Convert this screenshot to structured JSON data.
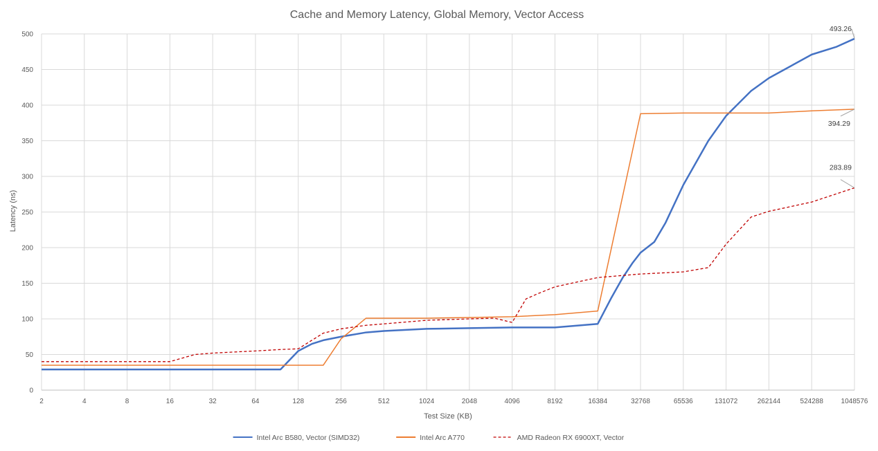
{
  "chart_data": {
    "type": "line",
    "title": "Cache and Memory Latency, Global Memory, Vector Access",
    "xlabel": "Test Size (KB)",
    "ylabel": "Latency (ns)",
    "x_scale": "log2",
    "xlim": [
      2,
      1048576
    ],
    "ylim": [
      0,
      500
    ],
    "x_ticks": [
      2,
      4,
      8,
      16,
      32,
      64,
      128,
      256,
      512,
      1024,
      2048,
      4096,
      8192,
      16384,
      32768,
      65536,
      131072,
      262144,
      524288,
      1048576
    ],
    "y_ticks": [
      0,
      50,
      100,
      150,
      200,
      250,
      300,
      350,
      400,
      450,
      500
    ],
    "grid": "both",
    "legend_position": "bottom",
    "series": [
      {
        "name": "Intel Arc B580, Vector (SIMD32)",
        "color": "#4472c4",
        "style": "solid",
        "x": [
          2,
          4,
          8,
          16,
          32,
          64,
          96,
          128,
          160,
          192,
          256,
          384,
          512,
          1024,
          2048,
          4096,
          8192,
          16384,
          20480,
          24576,
          28672,
          32768,
          40960,
          49152,
          65536,
          98304,
          131072,
          196608,
          262144,
          524288,
          786432,
          1048576
        ],
        "values": [
          29,
          29,
          29,
          29,
          29,
          29,
          29,
          55,
          65,
          70,
          75,
          81,
          83,
          86,
          87,
          88,
          88,
          93,
          130,
          158,
          178,
          193,
          208,
          235,
          288,
          350,
          385,
          420,
          438,
          471,
          482,
          493.26
        ]
      },
      {
        "name": "Intel Arc A770",
        "color": "#ed7d31",
        "style": "solid",
        "x": [
          2,
          4,
          8,
          16,
          32,
          64,
          128,
          192,
          256,
          384,
          512,
          1024,
          2048,
          4096,
          8192,
          16384,
          32768,
          65536,
          131072,
          262144,
          524288,
          1048576
        ],
        "values": [
          35,
          35,
          35,
          35,
          35,
          35,
          35,
          35,
          72,
          101,
          101,
          101,
          102,
          103,
          106,
          111,
          388,
          389,
          389,
          389,
          392,
          394.29
        ]
      },
      {
        "name": "AMD Radeon RX 6900XT, Vector",
        "color": "#c00000",
        "style": "dashed",
        "x": [
          2,
          4,
          8,
          16,
          24,
          32,
          64,
          96,
          128,
          192,
          256,
          384,
          512,
          1024,
          2048,
          3072,
          4096,
          5120,
          6144,
          8192,
          16384,
          32768,
          65536,
          98304,
          131072,
          196608,
          262144,
          524288,
          1048576
        ],
        "values": [
          40,
          40,
          40,
          40,
          50,
          52,
          55,
          57,
          58,
          80,
          86,
          91,
          93,
          98,
          100,
          101,
          95,
          128,
          135,
          145,
          158,
          163,
          166,
          172,
          205,
          243,
          251,
          264,
          283.89
        ]
      }
    ],
    "annotations": [
      {
        "series": "Intel Arc B580, Vector (SIMD32)",
        "x": 1048576,
        "y": 493.26,
        "text": "493.26"
      },
      {
        "series": "Intel Arc A770",
        "x": 1048576,
        "y": 394.29,
        "text": "394.29"
      },
      {
        "series": "AMD Radeon RX 6900XT, Vector",
        "x": 1048576,
        "y": 283.89,
        "text": "283.89"
      }
    ]
  }
}
